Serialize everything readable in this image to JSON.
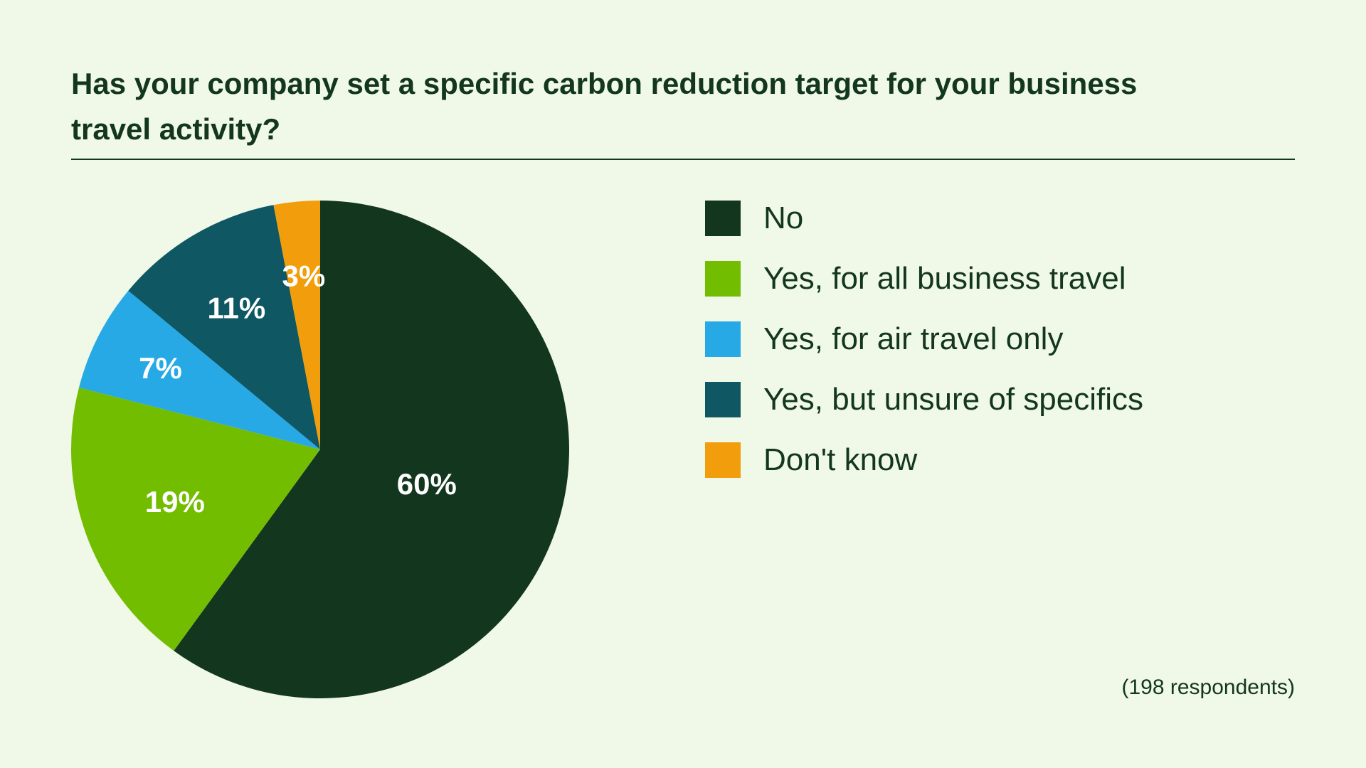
{
  "chart_data": {
    "type": "pie",
    "title": "Has your company set a specific carbon reduction target for your business travel activity?",
    "slices": [
      {
        "label": "No",
        "value": 60,
        "value_label": "60%",
        "color": "#13361f"
      },
      {
        "label": "Yes, for all business travel",
        "value": 19,
        "value_label": "19%",
        "color": "#73bd00"
      },
      {
        "label": "Yes, for air travel only",
        "value": 7,
        "value_label": "7%",
        "color": "#27a9e6"
      },
      {
        "label": "Yes, but unsure of specifics",
        "value": 11,
        "value_label": "11%",
        "color": "#0e5763"
      },
      {
        "label": "Don't know",
        "value": 3,
        "value_label": "3%",
        "color": "#f29e0c"
      }
    ],
    "legend_position": "right",
    "note": "(198 respondents)"
  },
  "colors": {
    "background": "#f0f8e8",
    "text": "#13361f"
  }
}
